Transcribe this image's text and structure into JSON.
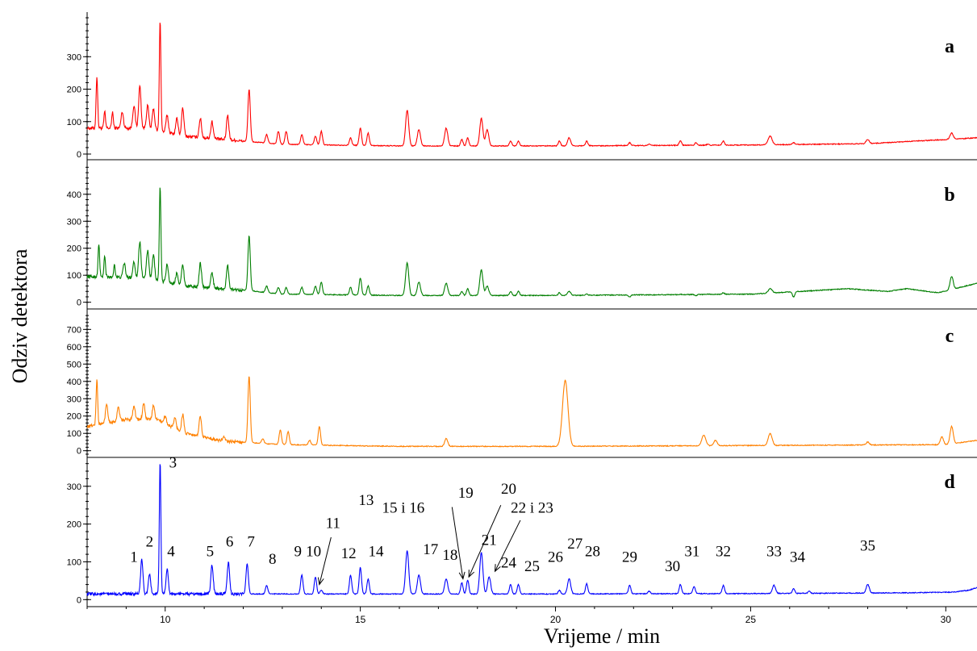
{
  "chart_data": {
    "type": "line",
    "xlabel": "Vrijeme / min",
    "ylabel": "Odziv detektora",
    "xlim": [
      8.0,
      30.8
    ],
    "xticks": [
      "10",
      "15",
      "20",
      "25",
      "30"
    ],
    "legend": "none",
    "grid": false,
    "panels": [
      {
        "name": "a",
        "color": "#ff0000",
        "ylim": [
          -10,
          430
        ],
        "yticks": [
          "0",
          "100",
          "200",
          "300"
        ],
        "baseline": [
          [
            8.0,
            80
          ],
          [
            9.5,
            80
          ],
          [
            10.5,
            55
          ],
          [
            12.0,
            40
          ],
          [
            13.0,
            30
          ],
          [
            16.0,
            25
          ],
          [
            20.0,
            25
          ],
          [
            25.0,
            28
          ],
          [
            28.0,
            32
          ],
          [
            30.8,
            50
          ]
        ],
        "peaks": [
          [
            8.25,
            240,
            0.02
          ],
          [
            8.45,
            130,
            0.02
          ],
          [
            8.65,
            130,
            0.02
          ],
          [
            8.9,
            130,
            0.03
          ],
          [
            9.2,
            150,
            0.03
          ],
          [
            9.35,
            210,
            0.03
          ],
          [
            9.55,
            150,
            0.03
          ],
          [
            9.7,
            140,
            0.03
          ],
          [
            9.87,
            415,
            0.02
          ],
          [
            10.05,
            120,
            0.03
          ],
          [
            10.3,
            110,
            0.03
          ],
          [
            10.45,
            140,
            0.03
          ],
          [
            10.9,
            110,
            0.03
          ],
          [
            11.2,
            100,
            0.03
          ],
          [
            11.6,
            120,
            0.03
          ],
          [
            12.15,
            200,
            0.03
          ],
          [
            12.6,
            60,
            0.03
          ],
          [
            12.9,
            70,
            0.03
          ],
          [
            13.1,
            70,
            0.03
          ],
          [
            13.5,
            60,
            0.03
          ],
          [
            13.85,
            55,
            0.03
          ],
          [
            14.0,
            70,
            0.03
          ],
          [
            14.75,
            50,
            0.03
          ],
          [
            15.0,
            80,
            0.03
          ],
          [
            15.2,
            65,
            0.03
          ],
          [
            16.2,
            135,
            0.04
          ],
          [
            16.5,
            75,
            0.04
          ],
          [
            17.2,
            80,
            0.04
          ],
          [
            17.6,
            45,
            0.03
          ],
          [
            17.75,
            50,
            0.03
          ],
          [
            18.1,
            110,
            0.04
          ],
          [
            18.25,
            75,
            0.04
          ],
          [
            18.85,
            40,
            0.03
          ],
          [
            19.05,
            40,
            0.03
          ],
          [
            20.1,
            40,
            0.03
          ],
          [
            20.35,
            50,
            0.04
          ],
          [
            20.8,
            40,
            0.03
          ],
          [
            21.9,
            35,
            0.03
          ],
          [
            22.4,
            30,
            0.03
          ],
          [
            23.2,
            40,
            0.03
          ],
          [
            23.6,
            35,
            0.03
          ],
          [
            23.9,
            30,
            0.03
          ],
          [
            24.3,
            40,
            0.03
          ],
          [
            25.5,
            55,
            0.05
          ],
          [
            26.1,
            35,
            0.03
          ],
          [
            28.0,
            45,
            0.04
          ],
          [
            30.15,
            65,
            0.04
          ]
        ]
      },
      {
        "name": "b",
        "color": "#007f00",
        "ylim": [
          -10,
          510
        ],
        "yticks": [
          "0",
          "100",
          "200",
          "300",
          "400"
        ],
        "baseline": [
          [
            8.0,
            95
          ],
          [
            9.5,
            90
          ],
          [
            10.5,
            60
          ],
          [
            12.0,
            45
          ],
          [
            13.0,
            30
          ],
          [
            16.0,
            25
          ],
          [
            20.0,
            25
          ],
          [
            25.0,
            30
          ],
          [
            27.5,
            50
          ],
          [
            28.5,
            40
          ],
          [
            29.0,
            50
          ],
          [
            29.8,
            35
          ],
          [
            30.8,
            70
          ]
        ],
        "peaks": [
          [
            8.3,
            215,
            0.02
          ],
          [
            8.45,
            170,
            0.02
          ],
          [
            8.7,
            140,
            0.02
          ],
          [
            8.95,
            145,
            0.03
          ],
          [
            9.2,
            150,
            0.03
          ],
          [
            9.35,
            225,
            0.03
          ],
          [
            9.55,
            190,
            0.03
          ],
          [
            9.7,
            175,
            0.03
          ],
          [
            9.87,
            430,
            0.02
          ],
          [
            10.05,
            140,
            0.03
          ],
          [
            10.3,
            110,
            0.03
          ],
          [
            10.45,
            140,
            0.03
          ],
          [
            10.9,
            145,
            0.03
          ],
          [
            11.2,
            110,
            0.03
          ],
          [
            11.6,
            135,
            0.03
          ],
          [
            12.15,
            245,
            0.03
          ],
          [
            12.6,
            60,
            0.03
          ],
          [
            12.9,
            55,
            0.03
          ],
          [
            13.1,
            55,
            0.03
          ],
          [
            13.5,
            55,
            0.03
          ],
          [
            13.85,
            60,
            0.03
          ],
          [
            14.0,
            75,
            0.03
          ],
          [
            14.75,
            55,
            0.03
          ],
          [
            15.0,
            90,
            0.03
          ],
          [
            15.2,
            60,
            0.03
          ],
          [
            16.2,
            145,
            0.04
          ],
          [
            16.5,
            75,
            0.04
          ],
          [
            17.2,
            70,
            0.04
          ],
          [
            17.6,
            40,
            0.03
          ],
          [
            17.75,
            50,
            0.03
          ],
          [
            18.1,
            120,
            0.04
          ],
          [
            18.25,
            60,
            0.04
          ],
          [
            18.85,
            40,
            0.03
          ],
          [
            19.05,
            40,
            0.03
          ],
          [
            20.1,
            35,
            0.03
          ],
          [
            20.35,
            40,
            0.04
          ],
          [
            20.8,
            30,
            0.03
          ],
          [
            21.9,
            20,
            0.03
          ],
          [
            23.2,
            30,
            0.03
          ],
          [
            23.6,
            25,
            0.03
          ],
          [
            23.9,
            30,
            0.03
          ],
          [
            24.3,
            35,
            0.03
          ],
          [
            25.5,
            50,
            0.05
          ],
          [
            26.1,
            20,
            0.03
          ],
          [
            28.0,
            45,
            0.04
          ],
          [
            30.15,
            95,
            0.04
          ]
        ]
      },
      {
        "name": "c",
        "color": "#ff8000",
        "ylim": [
          -20,
          790
        ],
        "yticks": [
          "0",
          "100",
          "200",
          "300",
          "400",
          "500",
          "600",
          "700"
        ],
        "baseline": [
          [
            8.0,
            140
          ],
          [
            9.0,
            180
          ],
          [
            9.8,
            180
          ],
          [
            10.5,
            100
          ],
          [
            11.5,
            55
          ],
          [
            13.0,
            35
          ],
          [
            16.0,
            25
          ],
          [
            20.0,
            25
          ],
          [
            25.0,
            30
          ],
          [
            30.0,
            35
          ],
          [
            30.8,
            60
          ]
        ],
        "peaks": [
          [
            8.25,
            410,
            0.02
          ],
          [
            8.5,
            270,
            0.03
          ],
          [
            8.8,
            250,
            0.03
          ],
          [
            9.2,
            260,
            0.03
          ],
          [
            9.45,
            270,
            0.03
          ],
          [
            9.7,
            260,
            0.03
          ],
          [
            10.0,
            200,
            0.03
          ],
          [
            10.25,
            190,
            0.03
          ],
          [
            10.45,
            210,
            0.03
          ],
          [
            10.9,
            200,
            0.03
          ],
          [
            11.5,
            80,
            0.03
          ],
          [
            12.15,
            430,
            0.03
          ],
          [
            12.5,
            70,
            0.03
          ],
          [
            12.95,
            120,
            0.03
          ],
          [
            13.15,
            110,
            0.03
          ],
          [
            13.7,
            60,
            0.03
          ],
          [
            13.95,
            140,
            0.03
          ],
          [
            17.2,
            70,
            0.04
          ],
          [
            20.25,
            405,
            0.07
          ],
          [
            23.8,
            90,
            0.05
          ],
          [
            24.1,
            60,
            0.04
          ],
          [
            25.5,
            100,
            0.05
          ],
          [
            28.0,
            50,
            0.04
          ],
          [
            29.9,
            80,
            0.04
          ],
          [
            30.15,
            140,
            0.04
          ]
        ]
      },
      {
        "name": "d",
        "color": "#0000ff",
        "ylim": [
          -10,
          370
        ],
        "yticks": [
          "0",
          "100",
          "200",
          "300"
        ],
        "baseline": [
          [
            8.0,
            15
          ],
          [
            12.0,
            15
          ],
          [
            20.0,
            15
          ],
          [
            25.0,
            16
          ],
          [
            29.0,
            18
          ],
          [
            30.2,
            20
          ],
          [
            30.6,
            25
          ],
          [
            30.8,
            32
          ]
        ],
        "peaks": [
          [
            9.4,
            105,
            0.03
          ],
          [
            9.6,
            65,
            0.03
          ],
          [
            9.87,
            365,
            0.02
          ],
          [
            10.05,
            80,
            0.03
          ],
          [
            11.2,
            92,
            0.03
          ],
          [
            11.62,
            98,
            0.03
          ],
          [
            12.1,
            95,
            0.03
          ],
          [
            12.6,
            38,
            0.03
          ],
          [
            13.5,
            65,
            0.03
          ],
          [
            13.85,
            60,
            0.03
          ],
          [
            14.0,
            25,
            0.03
          ],
          [
            14.75,
            65,
            0.03
          ],
          [
            15.0,
            85,
            0.03
          ],
          [
            15.2,
            55,
            0.03
          ],
          [
            16.2,
            130,
            0.04
          ],
          [
            16.5,
            65,
            0.04
          ],
          [
            17.2,
            55,
            0.04
          ],
          [
            17.6,
            45,
            0.03
          ],
          [
            17.75,
            52,
            0.03
          ],
          [
            18.1,
            125,
            0.04
          ],
          [
            18.3,
            60,
            0.04
          ],
          [
            18.85,
            40,
            0.03
          ],
          [
            19.05,
            40,
            0.03
          ],
          [
            20.1,
            25,
            0.03
          ],
          [
            20.35,
            55,
            0.04
          ],
          [
            20.8,
            42,
            0.03
          ],
          [
            21.9,
            38,
            0.03
          ],
          [
            22.4,
            22,
            0.03
          ],
          [
            23.2,
            40,
            0.03
          ],
          [
            23.55,
            35,
            0.03
          ],
          [
            24.3,
            38,
            0.03
          ],
          [
            25.6,
            38,
            0.04
          ],
          [
            26.1,
            30,
            0.03
          ],
          [
            26.5,
            22,
            0.03
          ],
          [
            28.0,
            40,
            0.04
          ]
        ],
        "peak_labels": [
          {
            "text": "1",
            "x": 9.2,
            "y": 100
          },
          {
            "text": "2",
            "x": 9.6,
            "y": 140
          },
          {
            "text": "3",
            "x": 10.2,
            "y": 350
          },
          {
            "text": "4",
            "x": 10.15,
            "y": 115
          },
          {
            "text": "5",
            "x": 11.15,
            "y": 115
          },
          {
            "text": "6",
            "x": 11.65,
            "y": 140
          },
          {
            "text": "7",
            "x": 12.2,
            "y": 140
          },
          {
            "text": "8",
            "x": 12.75,
            "y": 95
          },
          {
            "text": "9",
            "x": 13.4,
            "y": 115
          },
          {
            "text": "10",
            "x": 13.8,
            "y": 115
          },
          {
            "text": "11",
            "x": 14.3,
            "y": 190
          },
          {
            "text": "12",
            "x": 14.7,
            "y": 110
          },
          {
            "text": "13",
            "x": 15.15,
            "y": 250
          },
          {
            "text": "14",
            "x": 15.4,
            "y": 115
          },
          {
            "text": "15 i 16",
            "x": 16.1,
            "y": 230
          },
          {
            "text": "17",
            "x": 16.8,
            "y": 120
          },
          {
            "text": "18",
            "x": 17.3,
            "y": 105
          },
          {
            "text": "19",
            "x": 17.7,
            "y": 270
          },
          {
            "text": "20",
            "x": 18.8,
            "y": 280
          },
          {
            "text": "21",
            "x": 18.3,
            "y": 145
          },
          {
            "text": "22 i 23",
            "x": 19.4,
            "y": 230
          },
          {
            "text": "24",
            "x": 18.8,
            "y": 85
          },
          {
            "text": "25",
            "x": 19.4,
            "y": 75
          },
          {
            "text": "26",
            "x": 20.0,
            "y": 100
          },
          {
            "text": "27",
            "x": 20.5,
            "y": 135
          },
          {
            "text": "28",
            "x": 20.95,
            "y": 115
          },
          {
            "text": "29",
            "x": 21.9,
            "y": 100
          },
          {
            "text": "30",
            "x": 23.0,
            "y": 75
          },
          {
            "text": "31",
            "x": 23.5,
            "y": 115
          },
          {
            "text": "32",
            "x": 24.3,
            "y": 115
          },
          {
            "text": "33",
            "x": 25.6,
            "y": 115
          },
          {
            "text": "34",
            "x": 26.2,
            "y": 100
          },
          {
            "text": "35",
            "x": 28.0,
            "y": 130
          }
        ],
        "arrows": [
          {
            "from": [
              14.25,
              165
            ],
            "to": [
              13.95,
              40
            ]
          },
          {
            "from": [
              17.35,
              245
            ],
            "to": [
              17.63,
              55
            ]
          },
          {
            "from": [
              18.6,
              250
            ],
            "to": [
              17.78,
              60
            ]
          },
          {
            "from": [
              19.1,
              210
            ],
            "to": [
              18.45,
              75
            ]
          }
        ]
      }
    ]
  }
}
